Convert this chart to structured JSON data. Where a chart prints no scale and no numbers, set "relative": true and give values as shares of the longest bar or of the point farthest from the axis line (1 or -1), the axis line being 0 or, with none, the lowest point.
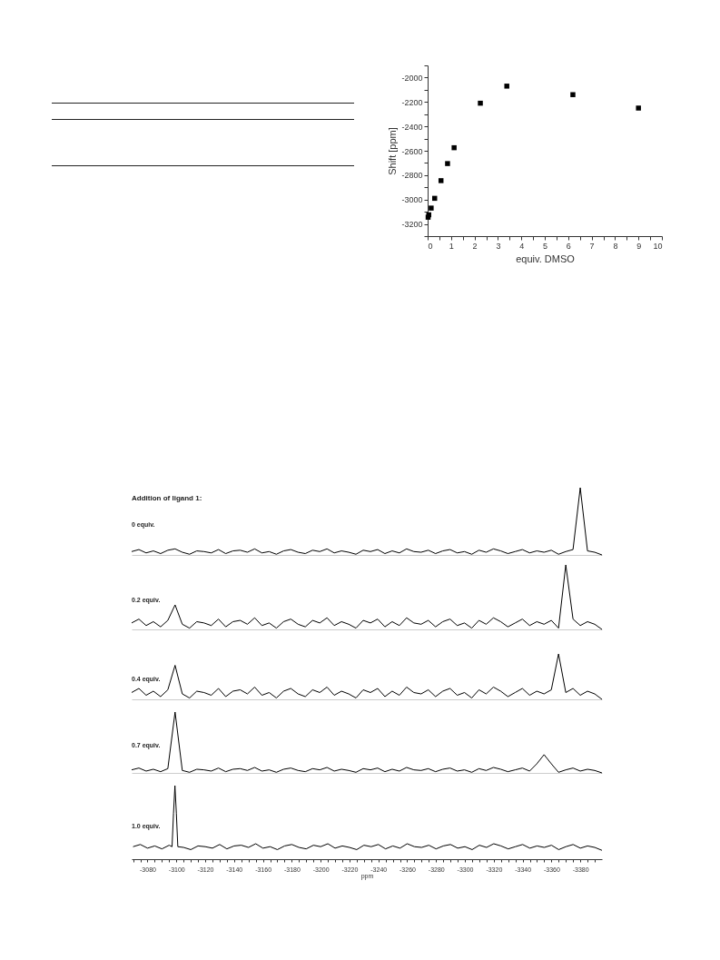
{
  "chart_data": [
    {
      "type": "scatter",
      "xlabel": "equiv. DMSO",
      "ylabel": "Shift [ppm]",
      "marker": "square",
      "xlim": [
        0,
        10
      ],
      "ylim": [
        -3300,
        -1900
      ],
      "xticks": [
        0,
        {
          "value": 0.5,
          "label": null
        },
        1,
        {
          "value": 1.5,
          "label": null
        },
        2,
        {
          "value": 2.5,
          "label": null
        },
        3,
        {
          "value": 3.5,
          "label": null
        },
        4,
        {
          "value": 4.5,
          "label": null
        },
        5,
        {
          "value": 5.5,
          "label": null
        },
        6,
        {
          "value": 6.5,
          "label": null
        },
        7,
        {
          "value": 7.5,
          "label": null
        },
        8,
        {
          "value": 8.5,
          "label": null
        },
        9,
        {
          "value": 9.5,
          "label": null
        },
        10
      ],
      "yticks": [
        {
          "value": -3300,
          "label": null
        },
        -3200,
        {
          "value": -3100,
          "label": null
        },
        -3000,
        {
          "value": -2900,
          "label": null
        },
        -2800,
        {
          "value": -2700,
          "label": null
        },
        -2600,
        {
          "value": -2500,
          "label": null
        },
        -2400,
        {
          "value": -2300,
          "label": null
        },
        -2200,
        {
          "value": -2100,
          "label": null
        },
        -2000,
        {
          "value": -1900,
          "label": null
        }
      ],
      "x": [
        0.02,
        0.05,
        0.15,
        0.3,
        0.57,
        0.85,
        1.13,
        2.25,
        3.38,
        6.2,
        9.0
      ],
      "series": [
        {
          "color": "#000000",
          "values": [
            -3145,
            -3125,
            -3070,
            -2990,
            -2845,
            -2705,
            -2575,
            -2210,
            -2070,
            -2140,
            -2250
          ]
        }
      ]
    },
    {
      "type": "line",
      "title": "Addition of ligand 1:",
      "annotations": [
        "0 equiv."
      ],
      "relative": true,
      "tick_labels": false,
      "categories": [
        null,
        null,
        null,
        null,
        null,
        null,
        null,
        null,
        null,
        null,
        null,
        null,
        null,
        null,
        null,
        null,
        null,
        null,
        null,
        null,
        null,
        null,
        null,
        null,
        null,
        null,
        null,
        null,
        null,
        null,
        null,
        null,
        null,
        null,
        null,
        null,
        null,
        null,
        null,
        null,
        null,
        null,
        null,
        null,
        null,
        null,
        null,
        null,
        null,
        null,
        null,
        null,
        null,
        null,
        null,
        null,
        null,
        null,
        null,
        null,
        null,
        null,
        null,
        null,
        null,
        null
      ],
      "series": [
        {
          "color": "#000000",
          "values": [
            0.05,
            0.08,
            0.03,
            0.06,
            0.02,
            0.07,
            0.09,
            0.04,
            0.01,
            0.06,
            0.05,
            0.03,
            0.08,
            0.02,
            0.06,
            0.07,
            0.04,
            0.09,
            0.03,
            0.05,
            0.01,
            0.06,
            0.08,
            0.04,
            0.02,
            0.07,
            0.05,
            0.09,
            0.03,
            0.06,
            0.04,
            0.01,
            0.07,
            0.05,
            0.08,
            0.02,
            0.06,
            0.03,
            0.09,
            0.05,
            0.04,
            0.07,
            0.02,
            0.06,
            0.08,
            0.03,
            0.05,
            0.01,
            0.07,
            0.04,
            0.09,
            0.06,
            0.02,
            0.05,
            0.08,
            0.03,
            0.06,
            0.04,
            0.07,
            0.01,
            0.05,
            0.08,
            1,
            0.06,
            0.04,
            0
          ]
        }
      ]
    },
    {
      "type": "line",
      "annotations": [
        "0.2 equiv."
      ],
      "relative": true,
      "tick_labels": false,
      "categories": [
        null,
        null,
        null,
        null,
        null,
        null,
        null,
        null,
        null,
        null,
        null,
        null,
        null,
        null,
        null,
        null,
        null,
        null,
        null,
        null,
        null,
        null,
        null,
        null,
        null,
        null,
        null,
        null,
        null,
        null,
        null,
        null,
        null,
        null,
        null,
        null,
        null,
        null,
        null,
        null,
        null,
        null,
        null,
        null,
        null,
        null,
        null,
        null,
        null,
        null,
        null,
        null,
        null,
        null,
        null,
        null,
        null,
        null,
        null,
        null,
        null,
        null,
        null,
        null,
        null,
        null
      ],
      "series": [
        {
          "color": "#000000",
          "values": [
            0.1,
            0.16,
            0.06,
            0.12,
            0.04,
            0.14,
            0.38,
            0.08,
            0.02,
            0.12,
            0.1,
            0.06,
            0.16,
            0.04,
            0.12,
            0.14,
            0.08,
            0.18,
            0.06,
            0.1,
            0.02,
            0.12,
            0.16,
            0.08,
            0.04,
            0.14,
            0.1,
            0.18,
            0.06,
            0.12,
            0.08,
            0.02,
            0.14,
            0.1,
            0.16,
            0.04,
            0.12,
            0.06,
            0.18,
            0.1,
            0.08,
            0.14,
            0.04,
            0.12,
            0.16,
            0.06,
            0.1,
            0.02,
            0.14,
            0.08,
            0.18,
            0.12,
            0.04,
            0.1,
            0.16,
            0.06,
            0.12,
            0.08,
            0.14,
            0.02,
            1,
            0.16,
            0.06,
            0.12,
            0.08,
            0
          ]
        }
      ]
    },
    {
      "type": "line",
      "annotations": [
        "0.4 equiv."
      ],
      "relative": true,
      "tick_labels": false,
      "categories": [
        null,
        null,
        null,
        null,
        null,
        null,
        null,
        null,
        null,
        null,
        null,
        null,
        null,
        null,
        null,
        null,
        null,
        null,
        null,
        null,
        null,
        null,
        null,
        null,
        null,
        null,
        null,
        null,
        null,
        null,
        null,
        null,
        null,
        null,
        null,
        null,
        null,
        null,
        null,
        null,
        null,
        null,
        null,
        null,
        null,
        null,
        null,
        null,
        null,
        null,
        null,
        null,
        null,
        null,
        null,
        null,
        null,
        null,
        null,
        null,
        null,
        null,
        null,
        null,
        null,
        null
      ],
      "series": [
        {
          "color": "#000000",
          "values": [
            0.15,
            0.24,
            0.09,
            0.18,
            0.06,
            0.21,
            0.75,
            0.12,
            0.03,
            0.18,
            0.15,
            0.09,
            0.24,
            0.06,
            0.18,
            0.21,
            0.12,
            0.27,
            0.09,
            0.15,
            0.03,
            0.18,
            0.24,
            0.12,
            0.06,
            0.21,
            0.15,
            0.27,
            0.09,
            0.18,
            0.12,
            0.03,
            0.21,
            0.15,
            0.24,
            0.06,
            0.18,
            0.09,
            0.27,
            0.15,
            0.12,
            0.21,
            0.06,
            0.18,
            0.24,
            0.09,
            0.15,
            0.03,
            0.21,
            0.12,
            0.27,
            0.18,
            0.06,
            0.15,
            0.24,
            0.09,
            0.18,
            0.12,
            0.21,
            1,
            0.15,
            0.24,
            0.09,
            0.18,
            0.12,
            0
          ]
        }
      ]
    },
    {
      "type": "line",
      "annotations": [
        "0.7 equiv."
      ],
      "relative": true,
      "tick_labels": false,
      "categories": [
        null,
        null,
        null,
        null,
        null,
        null,
        null,
        null,
        null,
        null,
        null,
        null,
        null,
        null,
        null,
        null,
        null,
        null,
        null,
        null,
        null,
        null,
        null,
        null,
        null,
        null,
        null,
        null,
        null,
        null,
        null,
        null,
        null,
        null,
        null,
        null,
        null,
        null,
        null,
        null,
        null,
        null,
        null,
        null,
        null,
        null,
        null,
        null,
        null,
        null,
        null,
        null,
        null,
        null,
        null,
        null,
        null,
        null,
        null,
        null,
        null,
        null,
        null,
        null,
        null,
        null
      ],
      "series": [
        {
          "color": "#000000",
          "values": [
            0.05,
            0.08,
            0.03,
            0.06,
            0.02,
            0.07,
            1,
            0.04,
            0.01,
            0.06,
            0.05,
            0.03,
            0.08,
            0.02,
            0.06,
            0.07,
            0.04,
            0.09,
            0.03,
            0.05,
            0.01,
            0.06,
            0.08,
            0.04,
            0.02,
            0.07,
            0.05,
            0.09,
            0.03,
            0.06,
            0.04,
            0.01,
            0.07,
            0.05,
            0.08,
            0.02,
            0.06,
            0.03,
            0.09,
            0.05,
            0.04,
            0.07,
            0.02,
            0.06,
            0.08,
            0.03,
            0.05,
            0.01,
            0.07,
            0.04,
            0.09,
            0.06,
            0.02,
            0.05,
            0.08,
            0.03,
            0.15,
            0.3,
            0.15,
            0.01,
            0.05,
            0.08,
            0.03,
            0.06,
            0.04,
            0
          ]
        }
      ]
    },
    {
      "type": "line",
      "annotations": [
        "1.0 equiv."
      ],
      "relative": true,
      "xlim": [
        -3069,
        -3395
      ],
      "tick_labels": "x",
      "xlabel": "ppm",
      "xticks": [
        {
          "value": -3070,
          "label": null
        },
        {
          "value": -3075,
          "label": null
        },
        -3080,
        {
          "value": -3085,
          "label": null
        },
        {
          "value": -3090,
          "label": null
        },
        {
          "value": -3095,
          "label": null
        },
        -3100,
        {
          "value": -3105,
          "label": null
        },
        {
          "value": -3110,
          "label": null
        },
        {
          "value": -3115,
          "label": null
        },
        -3120,
        {
          "value": -3125,
          "label": null
        },
        {
          "value": -3130,
          "label": null
        },
        {
          "value": -3135,
          "label": null
        },
        -3140,
        {
          "value": -3145,
          "label": null
        },
        {
          "value": -3150,
          "label": null
        },
        {
          "value": -3155,
          "label": null
        },
        -3160,
        {
          "value": -3165,
          "label": null
        },
        {
          "value": -3170,
          "label": null
        },
        {
          "value": -3175,
          "label": null
        },
        -3180,
        {
          "value": -3185,
          "label": null
        },
        {
          "value": -3190,
          "label": null
        },
        {
          "value": -3195,
          "label": null
        },
        -3200,
        {
          "value": -3205,
          "label": null
        },
        {
          "value": -3210,
          "label": null
        },
        {
          "value": -3215,
          "label": null
        },
        -3220,
        {
          "value": -3225,
          "label": null
        },
        {
          "value": -3230,
          "label": null
        },
        {
          "value": -3235,
          "label": null
        },
        -3240,
        {
          "value": -3245,
          "label": null
        },
        {
          "value": -3250,
          "label": null
        },
        {
          "value": -3255,
          "label": null
        },
        -3260,
        {
          "value": -3265,
          "label": null
        },
        {
          "value": -3270,
          "label": null
        },
        {
          "value": -3275,
          "label": null
        },
        -3280,
        {
          "value": -3285,
          "label": null
        },
        {
          "value": -3290,
          "label": null
        },
        {
          "value": -3295,
          "label": null
        },
        -3300,
        {
          "value": -3305,
          "label": null
        },
        {
          "value": -3310,
          "label": null
        },
        {
          "value": -3315,
          "label": null
        },
        -3320,
        {
          "value": -3325,
          "label": null
        },
        {
          "value": -3330,
          "label": null
        },
        {
          "value": -3335,
          "label": null
        },
        -3340,
        {
          "value": -3345,
          "label": null
        },
        {
          "value": -3350,
          "label": null
        },
        {
          "value": -3355,
          "label": null
        },
        -3360,
        {
          "value": -3365,
          "label": null
        },
        {
          "value": -3370,
          "label": null
        },
        {
          "value": -3375,
          "label": null
        },
        -3380,
        {
          "value": -3385,
          "label": null
        },
        {
          "value": -3390,
          "label": null
        }
      ],
      "series": [
        {
          "color": "#000000",
          "x": [
            -3070,
            -3075,
            -3080,
            -3085,
            -3090,
            -3095,
            -3097,
            -3098,
            -3099,
            -3100,
            -3101,
            -3105,
            -3110,
            -3115,
            -3120,
            -3125,
            -3130,
            -3135,
            -3140,
            -3145,
            -3150,
            -3155,
            -3160,
            -3165,
            -3170,
            -3175,
            -3180,
            -3185,
            -3190,
            -3195,
            -3200,
            -3205,
            -3210,
            -3215,
            -3220,
            -3225,
            -3230,
            -3235,
            -3240,
            -3245,
            -3250,
            -3255,
            -3260,
            -3265,
            -3270,
            -3275,
            -3280,
            -3285,
            -3290,
            -3295,
            -3300,
            -3305,
            -3310,
            -3315,
            -3320,
            -3325,
            -3330,
            -3335,
            -3340,
            -3345,
            -3350,
            -3355,
            -3360,
            -3365,
            -3370,
            -3375,
            -3380,
            -3385,
            -3390,
            -3395
          ],
          "values": [
            0.17,
            0.2,
            0.15,
            0.18,
            0.14,
            0.19,
            0.17,
            0.62,
            1,
            0.62,
            0.17,
            0.16,
            0.13,
            0.18,
            0.17,
            0.15,
            0.2,
            0.14,
            0.18,
            0.19,
            0.16,
            0.21,
            0.15,
            0.17,
            0.13,
            0.18,
            0.2,
            0.16,
            0.14,
            0.19,
            0.17,
            0.21,
            0.15,
            0.18,
            0.16,
            0.13,
            0.19,
            0.17,
            0.2,
            0.14,
            0.18,
            0.15,
            0.21,
            0.17,
            0.16,
            0.19,
            0.14,
            0.18,
            0.2,
            0.15,
            0.17,
            0.13,
            0.19,
            0.16,
            0.21,
            0.18,
            0.14,
            0.17,
            0.2,
            0.15,
            0.18,
            0.16,
            0.19,
            0.13,
            0.17,
            0.2,
            0.15,
            0.18,
            0.16,
            0.12
          ]
        }
      ]
    }
  ]
}
